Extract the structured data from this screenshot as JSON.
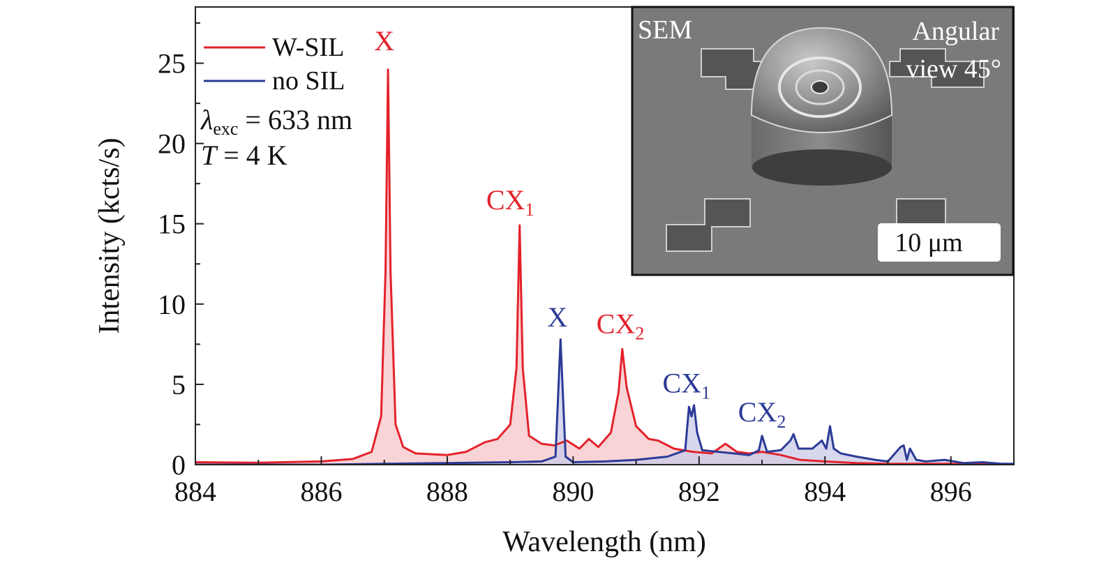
{
  "chart_data": {
    "type": "area",
    "title": "",
    "xlabel": "Wavelength (nm)",
    "ylabel": "Intensity (kcts/s)",
    "xlim": [
      884,
      897
    ],
    "ylim": [
      0,
      28.5
    ],
    "xticks": [
      884,
      886,
      888,
      890,
      892,
      894,
      896
    ],
    "yticks": [
      0,
      5,
      10,
      15,
      20,
      25
    ],
    "grid": false,
    "legend_position": "top-left",
    "series": [
      {
        "name": "W-SIL",
        "color": "#e3222b",
        "fill": "#f7c6c8",
        "x": [
          884,
          885,
          886,
          886.5,
          886.8,
          886.95,
          887.02,
          887.06,
          887.1,
          887.18,
          887.3,
          887.5,
          888,
          888.3,
          888.6,
          888.8,
          889,
          889.1,
          889.15,
          889.2,
          889.3,
          889.5,
          889.7,
          889.9,
          890.1,
          890.25,
          890.4,
          890.6,
          890.72,
          890.78,
          890.85,
          891,
          891.2,
          891.35,
          891.6,
          891.9,
          892.2,
          892.42,
          892.6,
          892.8,
          893,
          893.3,
          893.6,
          894,
          894.5,
          895,
          895.5,
          896,
          896.5,
          897
        ],
        "values": [
          0.15,
          0.12,
          0.2,
          0.35,
          0.8,
          3.0,
          12.0,
          24.6,
          12.0,
          2.5,
          1.1,
          0.7,
          0.6,
          0.8,
          1.4,
          1.6,
          2.5,
          6.0,
          14.9,
          6.0,
          1.8,
          1.3,
          1.2,
          1.5,
          1.0,
          1.6,
          1.1,
          2.0,
          4.5,
          7.2,
          4.8,
          2.4,
          1.6,
          1.5,
          1.0,
          0.8,
          0.7,
          1.3,
          0.8,
          0.7,
          0.8,
          0.6,
          0.3,
          0.2,
          0.1,
          0.05,
          0.05,
          0.05,
          0.03,
          0.03
        ]
      },
      {
        "name": "no SIL",
        "color": "#2b3a96",
        "fill": "#c9cbe8",
        "x": [
          884,
          886,
          887,
          888,
          889,
          889.5,
          889.72,
          889.8,
          889.88,
          890.0,
          890.5,
          891,
          891.5,
          891.78,
          891.84,
          891.88,
          891.92,
          891.97,
          892.05,
          892.3,
          892.55,
          892.8,
          892.95,
          893.0,
          893.08,
          893.3,
          893.45,
          893.5,
          893.58,
          893.8,
          893.95,
          894.02,
          894.08,
          894.14,
          894.25,
          894.5,
          894.8,
          895.0,
          895.2,
          895.25,
          895.3,
          895.35,
          895.45,
          895.6,
          895.9,
          896.2,
          896.5,
          896.8,
          897
        ],
        "values": [
          0.0,
          0.0,
          0.05,
          0.1,
          0.15,
          0.2,
          0.5,
          7.8,
          0.5,
          0.15,
          0.2,
          0.3,
          0.5,
          0.9,
          3.6,
          3.0,
          3.7,
          2.0,
          0.9,
          0.8,
          0.7,
          0.6,
          0.9,
          1.8,
          0.8,
          0.9,
          1.5,
          1.9,
          1.0,
          1.0,
          1.5,
          1.0,
          2.4,
          1.0,
          0.7,
          0.5,
          0.3,
          0.2,
          1.1,
          1.2,
          0.3,
          1.0,
          0.3,
          0.2,
          0.3,
          0.1,
          0.15,
          0.05,
          0.05
        ]
      }
    ],
    "annotations": [
      {
        "text": "X",
        "sub": "",
        "series": "W-SIL",
        "x": 887.0,
        "y": 25.8
      },
      {
        "text": "CX",
        "sub": "1",
        "series": "W-SIL",
        "x": 889.0,
        "y": 15.9
      },
      {
        "text": "X",
        "sub": "",
        "series": "no SIL",
        "x": 889.75,
        "y": 8.6
      },
      {
        "text": "CX",
        "sub": "2",
        "series": "W-SIL",
        "x": 890.75,
        "y": 8.2
      },
      {
        "text": "CX",
        "sub": "1",
        "series": "no SIL",
        "x": 891.8,
        "y": 4.5
      },
      {
        "text": "CX",
        "sub": "2",
        "series": "no SIL",
        "x": 893.0,
        "y": 2.7
      }
    ],
    "conditions": {
      "lambda_symbol": "λ",
      "lambda_sub": "exc",
      "lambda_value": " = 633 nm",
      "temp_symbol": "T",
      "temp_value": " = 4 K"
    },
    "inset": {
      "label_left": "SEM",
      "label_right_line1": "Angular",
      "label_right_line2": "view 45°",
      "scalebar": "10 μm"
    }
  }
}
